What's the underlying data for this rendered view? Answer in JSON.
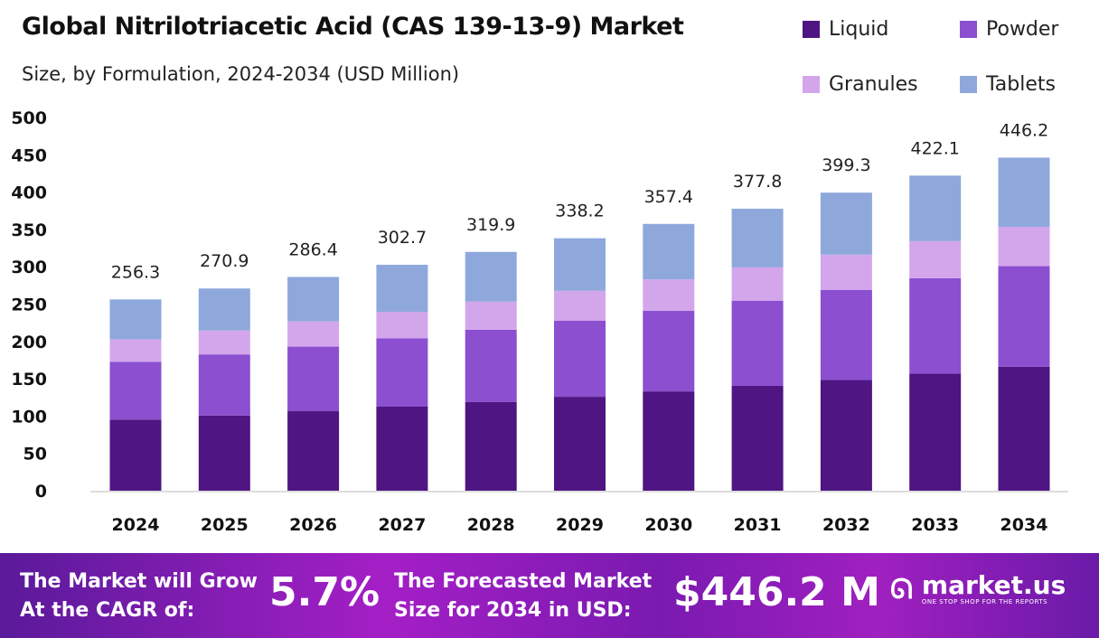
{
  "title": "Global Nitrilotriacetic Acid (CAS 139-13-9) Market",
  "subtitle": "Size, by Formulation, 2024-2034 (USD Million)",
  "chart_data": {
    "type": "bar",
    "stacked": true,
    "title": "Global Nitrilotriacetic Acid (CAS 139-13-9) Market",
    "subtitle": "Size, by Formulation, 2024-2034 (USD Million)",
    "categories": [
      "2024",
      "2025",
      "2026",
      "2027",
      "2028",
      "2029",
      "2030",
      "2031",
      "2032",
      "2033",
      "2034"
    ],
    "totals": [
      256.3,
      270.9,
      286.4,
      302.7,
      319.9,
      338.2,
      357.4,
      377.8,
      399.3,
      422.1,
      446.2
    ],
    "series": [
      {
        "name": "Liquid",
        "color": "#4e1583",
        "values": [
          95.3,
          100.8,
          106.5,
          112.6,
          119.0,
          125.8,
          133.0,
          140.5,
          148.5,
          157.0,
          166.0
        ]
      },
      {
        "name": "Powder",
        "color": "#8b4fd0",
        "values": [
          77.4,
          81.8,
          86.5,
          91.4,
          96.6,
          102.1,
          107.9,
          114.1,
          120.6,
          127.5,
          134.8
        ]
      },
      {
        "name": "Granules",
        "color": "#d3a6ec",
        "values": [
          30.2,
          32.0,
          33.8,
          35.7,
          37.7,
          39.9,
          42.2,
          44.6,
          47.1,
          49.8,
          52.7
        ]
      },
      {
        "name": "Tablets",
        "color": "#8ea8dc",
        "values": [
          53.4,
          56.3,
          59.6,
          63.0,
          66.6,
          70.4,
          74.3,
          78.6,
          83.1,
          87.8,
          92.7
        ]
      }
    ],
    "yticks": [
      0,
      50,
      100,
      150,
      200,
      250,
      300,
      350,
      400,
      450,
      500
    ],
    "ylim": [
      0,
      500
    ],
    "grid": false,
    "legend": "top-right"
  },
  "footer": {
    "cagr_label_1": "The Market will Grow",
    "cagr_label_2": "At the CAGR of:",
    "cagr_value": "5.7%",
    "forecast_label_1": "The Forecasted Market",
    "forecast_label_2": "Size for 2034 in USD:",
    "forecast_value": "$446.2 M",
    "brand": "market.us",
    "tagline": "ONE STOP SHOP FOR THE REPORTS"
  }
}
